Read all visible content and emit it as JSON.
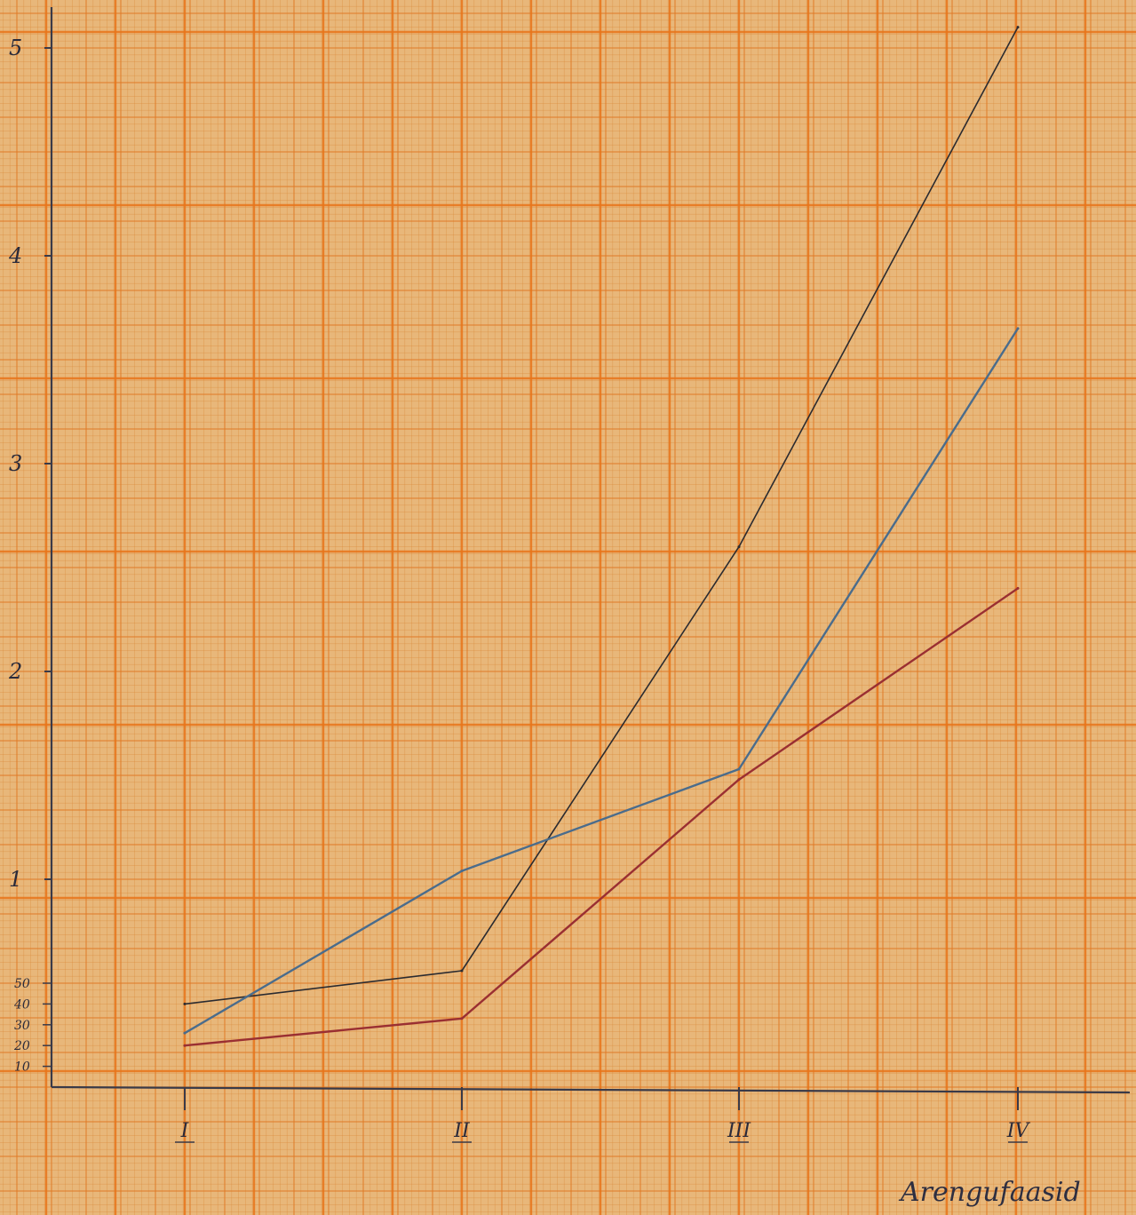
{
  "chart_data": {
    "type": "line",
    "xlabel": "Arengufaasid",
    "ylabel": "",
    "title": "",
    "categories": [
      "I",
      "II",
      "III",
      "IV"
    ],
    "ylim": [
      0,
      5.2
    ],
    "y_major_ticks": [
      {
        "value": 1,
        "label": "1"
      },
      {
        "value": 2,
        "label": "2"
      },
      {
        "value": 3,
        "label": "3"
      },
      {
        "value": 4,
        "label": "4"
      },
      {
        "value": 5,
        "label": "5"
      }
    ],
    "y_minor_ticks": [
      {
        "value": 0.1,
        "label": "10"
      },
      {
        "value": 0.2,
        "label": "20"
      },
      {
        "value": 0.3,
        "label": "30"
      },
      {
        "value": 0.4,
        "label": "40"
      },
      {
        "value": 0.5,
        "label": "50"
      }
    ],
    "grid": true,
    "series": [
      {
        "color": "#2b2b30",
        "values": [
          0.4,
          0.56,
          2.6,
          5.1
        ]
      },
      {
        "color": "#4a6c8c",
        "values": [
          0.26,
          1.04,
          1.53,
          3.65
        ]
      },
      {
        "color": "#9a2f32",
        "values": [
          0.2,
          0.33,
          1.48,
          2.4
        ]
      }
    ]
  }
}
